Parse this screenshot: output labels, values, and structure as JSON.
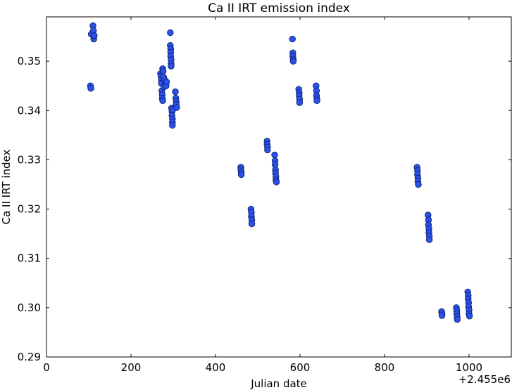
{
  "chart_data": {
    "type": "scatter",
    "title": "Ca II IRT emission index",
    "xlabel": "Julian date",
    "ylabel": "Ca II IRT index",
    "x_offset_label": "+2.455e6",
    "xlim": [
      0,
      1100
    ],
    "ylim": [
      0.29,
      0.359
    ],
    "x_ticks": [
      0,
      200,
      400,
      600,
      800,
      1000
    ],
    "x_tick_labels": [
      "0",
      "200",
      "400",
      "600",
      "800",
      "1000"
    ],
    "y_ticks": [
      0.29,
      0.3,
      0.31,
      0.32,
      0.33,
      0.34,
      0.35
    ],
    "y_tick_labels": [
      "0.29",
      "0.30",
      "0.31",
      "0.32",
      "0.33",
      "0.34",
      "0.35"
    ],
    "grid": false,
    "marker_color": "#2a52e8",
    "marker_edge_color": "#0a1a66",
    "series": [
      {
        "points": [
          {
            "x": 104,
            "y": 0.345
          },
          {
            "x": 105,
            "y": 0.3445
          },
          {
            "x": 106,
            "y": 0.3555
          },
          {
            "x": 110,
            "y": 0.3572
          },
          {
            "x": 111,
            "y": 0.3562
          },
          {
            "x": 112,
            "y": 0.3545
          },
          {
            "x": 113,
            "y": 0.3552
          },
          {
            "x": 270,
            "y": 0.3475
          },
          {
            "x": 271,
            "y": 0.347
          },
          {
            "x": 272,
            "y": 0.3462
          },
          {
            "x": 272,
            "y": 0.3455
          },
          {
            "x": 273,
            "y": 0.344
          },
          {
            "x": 274,
            "y": 0.3432
          },
          {
            "x": 274,
            "y": 0.3425
          },
          {
            "x": 275,
            "y": 0.342
          },
          {
            "x": 275,
            "y": 0.3485
          },
          {
            "x": 276,
            "y": 0.348
          },
          {
            "x": 277,
            "y": 0.3468
          },
          {
            "x": 278,
            "y": 0.3448
          },
          {
            "x": 280,
            "y": 0.3462
          },
          {
            "x": 282,
            "y": 0.3455
          },
          {
            "x": 283,
            "y": 0.345
          },
          {
            "x": 284,
            "y": 0.3458
          },
          {
            "x": 293,
            "y": 0.3558
          },
          {
            "x": 293,
            "y": 0.3532
          },
          {
            "x": 294,
            "y": 0.3525
          },
          {
            "x": 294,
            "y": 0.3518
          },
          {
            "x": 294,
            "y": 0.351
          },
          {
            "x": 295,
            "y": 0.3503
          },
          {
            "x": 295,
            "y": 0.3495
          },
          {
            "x": 295,
            "y": 0.349
          },
          {
            "x": 296,
            "y": 0.3405
          },
          {
            "x": 297,
            "y": 0.3398
          },
          {
            "x": 297,
            "y": 0.339
          },
          {
            "x": 298,
            "y": 0.3383
          },
          {
            "x": 298,
            "y": 0.3376
          },
          {
            "x": 298,
            "y": 0.337
          },
          {
            "x": 299,
            "y": 0.3402
          },
          {
            "x": 305,
            "y": 0.3438
          },
          {
            "x": 306,
            "y": 0.3425
          },
          {
            "x": 307,
            "y": 0.3418
          },
          {
            "x": 307,
            "y": 0.3412
          },
          {
            "x": 308,
            "y": 0.3406
          },
          {
            "x": 460,
            "y": 0.3285
          },
          {
            "x": 460,
            "y": 0.328
          },
          {
            "x": 461,
            "y": 0.3275
          },
          {
            "x": 461,
            "y": 0.327
          },
          {
            "x": 484,
            "y": 0.32
          },
          {
            "x": 485,
            "y": 0.3193
          },
          {
            "x": 485,
            "y": 0.3185
          },
          {
            "x": 486,
            "y": 0.3178
          },
          {
            "x": 486,
            "y": 0.317
          },
          {
            "x": 522,
            "y": 0.3338
          },
          {
            "x": 522,
            "y": 0.3332
          },
          {
            "x": 523,
            "y": 0.3326
          },
          {
            "x": 523,
            "y": 0.332
          },
          {
            "x": 540,
            "y": 0.331
          },
          {
            "x": 541,
            "y": 0.3298
          },
          {
            "x": 541,
            "y": 0.329
          },
          {
            "x": 542,
            "y": 0.328
          },
          {
            "x": 542,
            "y": 0.3273
          },
          {
            "x": 543,
            "y": 0.3266
          },
          {
            "x": 543,
            "y": 0.3259
          },
          {
            "x": 544,
            "y": 0.3255
          },
          {
            "x": 582,
            "y": 0.3545
          },
          {
            "x": 583,
            "y": 0.3517
          },
          {
            "x": 583,
            "y": 0.351
          },
          {
            "x": 584,
            "y": 0.3504
          },
          {
            "x": 584,
            "y": 0.35
          },
          {
            "x": 597,
            "y": 0.3443
          },
          {
            "x": 598,
            "y": 0.3436
          },
          {
            "x": 598,
            "y": 0.343
          },
          {
            "x": 599,
            "y": 0.3423
          },
          {
            "x": 599,
            "y": 0.3416
          },
          {
            "x": 638,
            "y": 0.345
          },
          {
            "x": 639,
            "y": 0.344
          },
          {
            "x": 639,
            "y": 0.343
          },
          {
            "x": 640,
            "y": 0.3424
          },
          {
            "x": 640,
            "y": 0.342
          },
          {
            "x": 877,
            "y": 0.3285
          },
          {
            "x": 878,
            "y": 0.3278
          },
          {
            "x": 878,
            "y": 0.327
          },
          {
            "x": 879,
            "y": 0.3263
          },
          {
            "x": 879,
            "y": 0.3256
          },
          {
            "x": 880,
            "y": 0.325
          },
          {
            "x": 903,
            "y": 0.3188
          },
          {
            "x": 904,
            "y": 0.3178
          },
          {
            "x": 904,
            "y": 0.3168
          },
          {
            "x": 905,
            "y": 0.316
          },
          {
            "x": 905,
            "y": 0.3152
          },
          {
            "x": 906,
            "y": 0.3145
          },
          {
            "x": 906,
            "y": 0.3138
          },
          {
            "x": 935,
            "y": 0.2992
          },
          {
            "x": 936,
            "y": 0.2988
          },
          {
            "x": 936,
            "y": 0.2984
          },
          {
            "x": 970,
            "y": 0.3
          },
          {
            "x": 971,
            "y": 0.2994
          },
          {
            "x": 971,
            "y": 0.2988
          },
          {
            "x": 972,
            "y": 0.2982
          },
          {
            "x": 972,
            "y": 0.2976
          },
          {
            "x": 997,
            "y": 0.3032
          },
          {
            "x": 998,
            "y": 0.3025
          },
          {
            "x": 998,
            "y": 0.3018
          },
          {
            "x": 999,
            "y": 0.301
          },
          {
            "x": 999,
            "y": 0.3002
          },
          {
            "x": 1000,
            "y": 0.2995
          },
          {
            "x": 1000,
            "y": 0.2988
          },
          {
            "x": 1001,
            "y": 0.2983
          }
        ]
      }
    ]
  }
}
